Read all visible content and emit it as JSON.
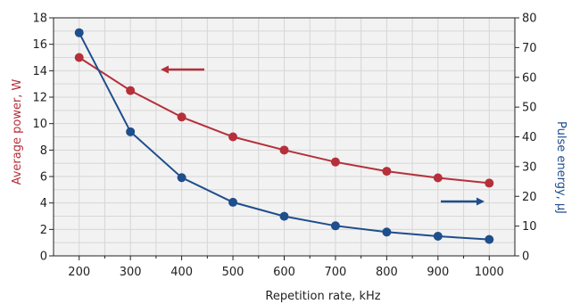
{
  "chart_data": {
    "type": "line",
    "title": "",
    "xlabel": "Repetition rate, kHz",
    "ylabel_left": "Average power, W",
    "ylabel_right": "Pulse energy, μJ",
    "x": [
      200,
      300,
      400,
      500,
      600,
      700,
      800,
      900,
      1000
    ],
    "xlim": [
      150,
      1050
    ],
    "xticks": [
      "200",
      "300",
      "400",
      "500",
      "600",
      "700",
      "800",
      "900",
      "1000"
    ],
    "ylim_left": [
      0,
      18
    ],
    "yticks_left": [
      "0",
      "2",
      "4",
      "6",
      "8",
      "10",
      "12",
      "14",
      "16",
      "18"
    ],
    "ylim_right": [
      0,
      80
    ],
    "yticks_right": [
      "0",
      "10",
      "20",
      "30",
      "40",
      "50",
      "60",
      "70",
      "80"
    ],
    "grid": true,
    "series": [
      {
        "axis": "left",
        "color": "#b5303a",
        "values": [
          15,
          12.5,
          10.5,
          9,
          8,
          7.1,
          6.4,
          5.9,
          5.5
        ]
      },
      {
        "axis": "right",
        "color": "#1f4e8c",
        "values": [
          75,
          41.7,
          26.3,
          18,
          13.3,
          10.1,
          8,
          6.6,
          5.5
        ]
      }
    ],
    "annotations": [
      {
        "type": "arrow",
        "direction": "left",
        "series": 0,
        "color": "#b5303a"
      },
      {
        "type": "arrow",
        "direction": "right",
        "series": 1,
        "color": "#1f4e8c"
      }
    ]
  }
}
